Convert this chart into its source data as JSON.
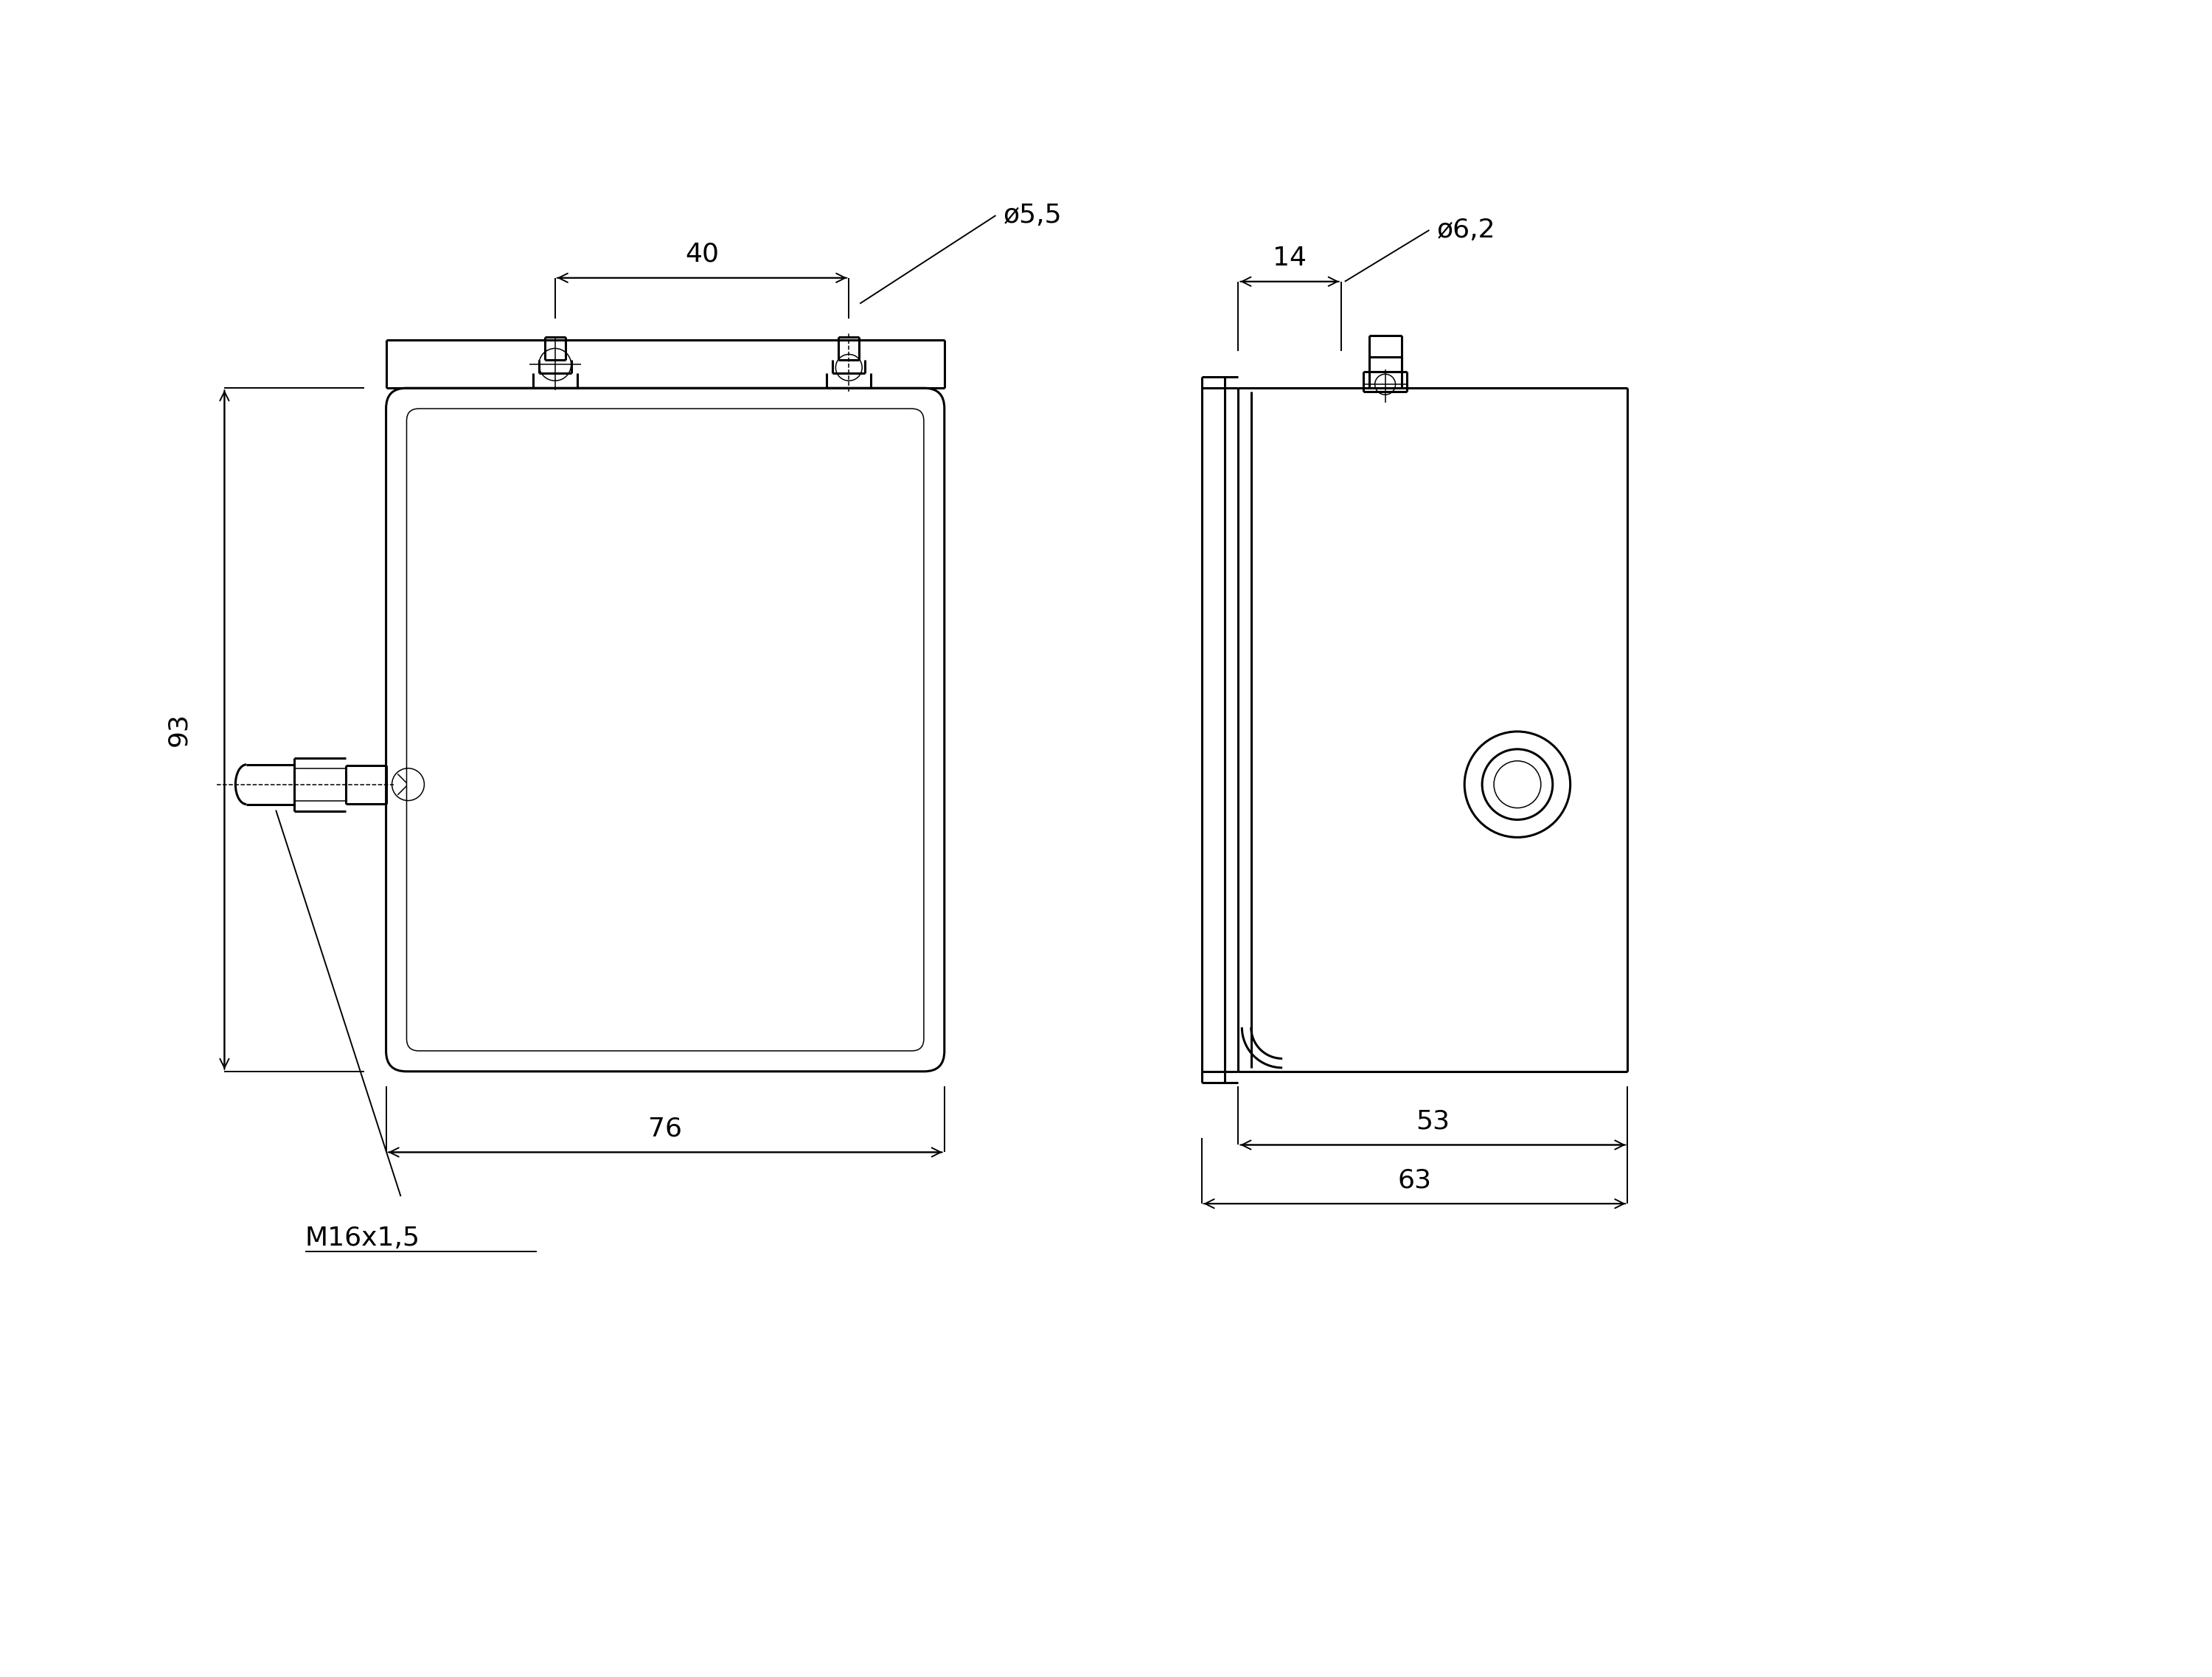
{
  "bg_color": "#ffffff",
  "line_color": "#000000",
  "lw_main": 2.2,
  "lw_thin": 1.1,
  "lw_dim": 1.4,
  "fig_width": 30.0,
  "fig_height": 22.74,
  "annotations": {
    "dim_40": "40",
    "dim_phi55": "ø5,5",
    "dim_93": "93",
    "dim_76": "76",
    "dim_M16": "M16x1,5",
    "dim_14": "14",
    "dim_phi62": "ø6,2",
    "dim_53": "53",
    "dim_63": "63"
  },
  "font_size_dim": 26
}
